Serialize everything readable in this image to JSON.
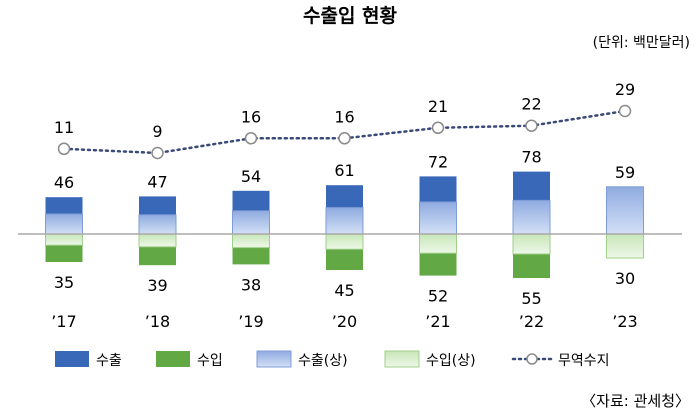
{
  "chart_data": {
    "type": "bar",
    "title": "수출입 현황",
    "unit_note": "(단위: 백만달러)",
    "source": "〈자료: 관세청〉",
    "categories": [
      "’17",
      "’18",
      "’19",
      "’20",
      "’21",
      "’22",
      "’23"
    ],
    "series": [
      {
        "name": "수출",
        "values": [
          46,
          47,
          54,
          61,
          72,
          78,
          null
        ]
      },
      {
        "name": "수입",
        "values": [
          35,
          39,
          38,
          45,
          52,
          55,
          null
        ]
      },
      {
        "name": "수출(상)",
        "values": [
          25,
          24,
          29,
          33,
          40,
          42,
          59
        ]
      },
      {
        "name": "수입(상)",
        "values": [
          14,
          16,
          17,
          19,
          24,
          25,
          30
        ]
      },
      {
        "name": "무역수지",
        "values": [
          11,
          9,
          16,
          16,
          21,
          22,
          29
        ]
      }
    ],
    "export_labels": [
      46,
      47,
      54,
      61,
      72,
      78,
      59
    ],
    "import_labels": [
      35,
      39,
      38,
      45,
      52,
      55,
      30
    ],
    "colors": {
      "export": "#3a68b8",
      "import": "#62a845",
      "export_h1": "#a9c0e8",
      "import_h1": "#d9efcf",
      "balance": "#3a4a78",
      "axis": "#a8a8a8"
    }
  }
}
